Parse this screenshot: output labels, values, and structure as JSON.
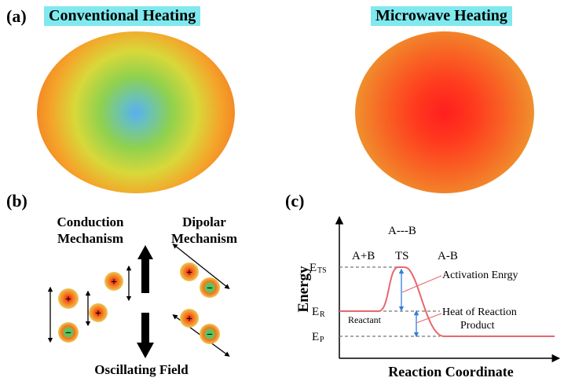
{
  "panel_a": {
    "label": "(a)",
    "conventional": "Conventional Heating",
    "microwave": "Microwave Heating"
  },
  "panel_b": {
    "label": "(b)",
    "conduction": [
      "Conduction",
      "Mechanism"
    ],
    "dipolar": [
      "Dipolar",
      "Mechanism"
    ],
    "oscillating": "Oscillating Field",
    "plus": "+",
    "minus": "−"
  },
  "panel_c": {
    "label": "(c)",
    "y_axis": "Energy",
    "x_axis": "Reaction Coordinate",
    "e_ts": "TS",
    "e_r": "R",
    "e_p": "P",
    "e_prefix": "E",
    "a_plus_b": "A+B",
    "a_dash_b": "A---B",
    "ts": "TS",
    "a_b": "A-B",
    "activation": "Activation Enrgy",
    "heat": "Heat of Reaction",
    "product": "Product",
    "reactant": "Reactant"
  },
  "colors": {
    "curve": "#e8666e",
    "arrow": "#2f7fd8",
    "dashed": "#777777"
  }
}
